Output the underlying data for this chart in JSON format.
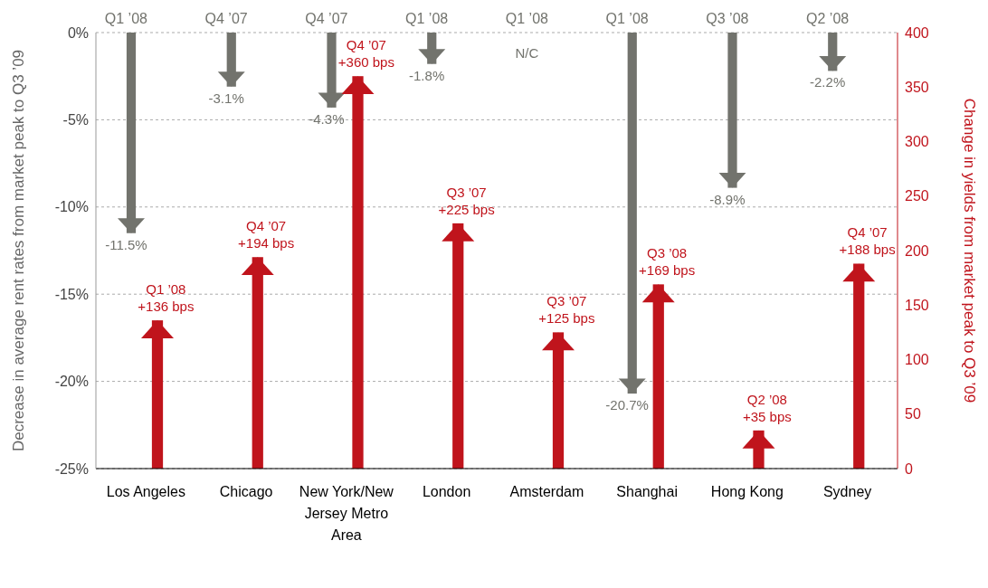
{
  "chart_data": {
    "type": "bar",
    "xlabel": null,
    "ylabel": "Decrease in average rent rates from market peak to Q3 ’09",
    "y2label": "Change in yields from market peak to Q3 ’09",
    "categories": [
      "Los Angeles",
      "Chicago",
      "New York/New Jersey Metro Area",
      "London",
      "Amsterdam",
      "Shanghai",
      "Hong Kong",
      "Sydney"
    ],
    "series": [
      {
        "color": "#72736d",
        "values": [
          -11.5,
          -3.1,
          -4.3,
          -1.8,
          null,
          -20.7,
          -8.9,
          -2.2
        ],
        "value_labels": [
          "-11.5%",
          "-3.1%",
          "-4.3%",
          "-1.8%",
          "N/C",
          "-20.7%",
          "-8.9%",
          "-2.2%"
        ]
      },
      {
        "color": "#c0141c",
        "axis": "y2",
        "values": [
          136,
          194,
          360,
          225,
          125,
          169,
          35,
          188
        ],
        "value_labels": [
          "Q1 ’08\n+136 bps",
          "Q4 ’07\n+194 bps",
          "Q4 ’07\n+360 bps",
          "Q3 ’07\n+225 bps",
          "Q3 ’07\n+125 bps",
          "Q3 ’08\n+169 bps",
          "Q2 ’08\n+35 bps",
          "Q4 ’07\n+188 bps"
        ]
      }
    ],
    "ylim": [
      -25,
      0
    ],
    "yticks": [
      {
        "value": 0,
        "label": "0%"
      },
      {
        "value": -5,
        "label": "-5%"
      },
      {
        "value": -10,
        "label": "-10%"
      },
      {
        "value": -15,
        "label": "-15%"
      },
      {
        "value": -20,
        "label": "-20%"
      },
      {
        "value": -25,
        "label": "-25%"
      }
    ],
    "y2lim": [
      0,
      400
    ],
    "y2ticks": [
      0,
      50,
      100,
      150,
      200,
      250,
      300,
      350,
      400
    ],
    "grid": "y",
    "annotations": [
      "Q1 ’08",
      "Q4 ’07",
      "Q4 ’07",
      "Q1 ’08",
      "Q1 ’08",
      "Q1 ’08",
      "Q3 ’08",
      "Q2 ’08"
    ]
  }
}
